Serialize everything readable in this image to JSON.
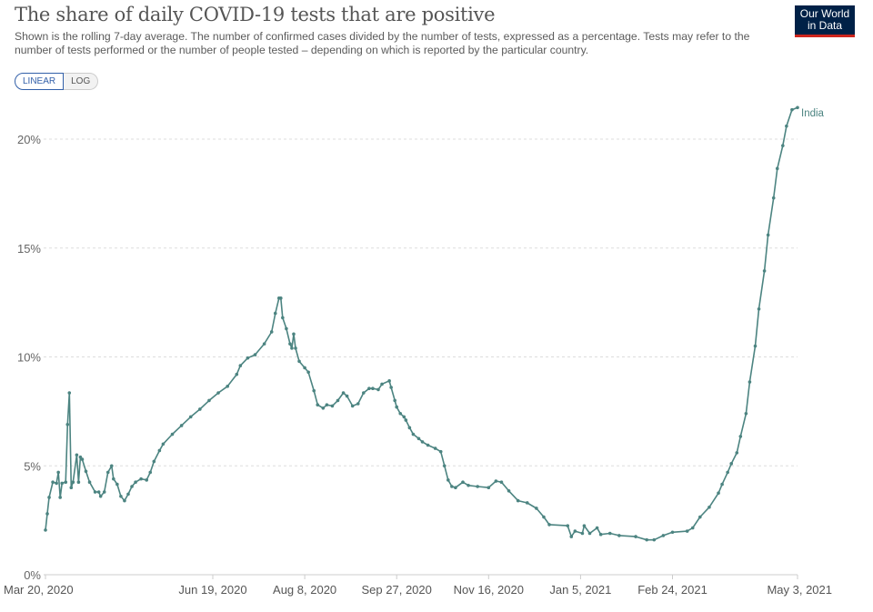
{
  "header": {
    "title": "The share of daily COVID-19 tests that are positive",
    "subtitle": "Shown is the rolling 7-day average. The number of confirmed cases divided by the number of tests, expressed as a percentage. Tests may refer to the number of tests performed or the number of people tested – depending on which is reported by the particular country.",
    "logo_text": "Our World in Data"
  },
  "controls": {
    "linear_label": "LINEAR",
    "log_label": "LOG",
    "selected": "LINEAR"
  },
  "colors": {
    "series": "#4c8481",
    "logo_bg": "#002147",
    "logo_accent": "#ce261e",
    "active_toggle": "#3360a9"
  },
  "chart_data": {
    "type": "line",
    "title": "The share of daily COVID-19 tests that are positive",
    "xlabel": "",
    "ylabel": "",
    "ylim": [
      0,
      22
    ],
    "xlim": [
      "2020-03-20",
      "2021-05-03"
    ],
    "grid": true,
    "y_scale": "linear",
    "y_ticks": [
      "0%",
      "5%",
      "10%",
      "15%",
      "20%"
    ],
    "x_ticks": [
      [
        "2020-03-20",
        "Mar 20, 2020"
      ],
      [
        "2020-06-19",
        "Jun 19, 2020"
      ],
      [
        "2020-08-08",
        "Aug 8, 2020"
      ],
      [
        "2020-09-27",
        "Sep 27, 2020"
      ],
      [
        "2020-11-16",
        "Nov 16, 2020"
      ],
      [
        "2021-01-05",
        "Jan 5, 2021"
      ],
      [
        "2021-02-24",
        "Feb 24, 2021"
      ],
      [
        "2021-05-03",
        "May 3, 2021"
      ]
    ],
    "series": [
      {
        "name": "India",
        "points": [
          [
            "2020-03-20",
            2.05
          ],
          [
            "2020-03-21",
            2.8
          ],
          [
            "2020-03-22",
            3.55
          ],
          [
            "2020-03-24",
            4.25
          ],
          [
            "2020-03-26",
            4.2
          ],
          [
            "2020-03-27",
            4.7
          ],
          [
            "2020-03-28",
            3.55
          ],
          [
            "2020-03-29",
            4.2
          ],
          [
            "2020-03-31",
            4.25
          ],
          [
            "2020-04-01",
            6.9
          ],
          [
            "2020-04-02",
            8.35
          ],
          [
            "2020-04-03",
            4.0
          ],
          [
            "2020-04-04",
            4.25
          ],
          [
            "2020-04-06",
            5.5
          ],
          [
            "2020-04-07",
            4.25
          ],
          [
            "2020-04-08",
            5.4
          ],
          [
            "2020-04-09",
            5.3
          ],
          [
            "2020-04-11",
            4.75
          ],
          [
            "2020-04-13",
            4.25
          ],
          [
            "2020-04-16",
            3.8
          ],
          [
            "2020-04-18",
            3.8
          ],
          [
            "2020-04-19",
            3.6
          ],
          [
            "2020-04-21",
            3.8
          ],
          [
            "2020-04-23",
            4.7
          ],
          [
            "2020-04-25",
            5.0
          ],
          [
            "2020-04-26",
            4.4
          ],
          [
            "2020-04-28",
            4.15
          ],
          [
            "2020-04-30",
            3.6
          ],
          [
            "2020-05-02",
            3.4
          ],
          [
            "2020-05-04",
            3.7
          ],
          [
            "2020-05-06",
            4.05
          ],
          [
            "2020-05-08",
            4.25
          ],
          [
            "2020-05-11",
            4.4
          ],
          [
            "2020-05-14",
            4.35
          ],
          [
            "2020-05-16",
            4.7
          ],
          [
            "2020-05-18",
            5.2
          ],
          [
            "2020-05-21",
            5.7
          ],
          [
            "2020-05-23",
            6.0
          ],
          [
            "2020-05-28",
            6.45
          ],
          [
            "2020-06-02",
            6.85
          ],
          [
            "2020-06-07",
            7.25
          ],
          [
            "2020-06-12",
            7.6
          ],
          [
            "2020-06-17",
            8.0
          ],
          [
            "2020-06-22",
            8.35
          ],
          [
            "2020-06-27",
            8.65
          ],
          [
            "2020-07-02",
            9.2
          ],
          [
            "2020-07-04",
            9.6
          ],
          [
            "2020-07-08",
            9.95
          ],
          [
            "2020-07-12",
            10.1
          ],
          [
            "2020-07-17",
            10.6
          ],
          [
            "2020-07-21",
            11.15
          ],
          [
            "2020-07-23",
            12.0
          ],
          [
            "2020-07-25",
            12.7
          ],
          [
            "2020-07-26",
            12.7
          ],
          [
            "2020-07-27",
            11.8
          ],
          [
            "2020-07-29",
            11.3
          ],
          [
            "2020-07-31",
            10.6
          ],
          [
            "2020-08-01",
            10.4
          ],
          [
            "2020-08-02",
            11.05
          ],
          [
            "2020-08-03",
            10.4
          ],
          [
            "2020-08-05",
            9.8
          ],
          [
            "2020-08-08",
            9.5
          ],
          [
            "2020-08-10",
            9.3
          ],
          [
            "2020-08-13",
            8.45
          ],
          [
            "2020-08-15",
            7.8
          ],
          [
            "2020-08-18",
            7.65
          ],
          [
            "2020-08-20",
            7.8
          ],
          [
            "2020-08-23",
            7.75
          ],
          [
            "2020-08-26",
            8.0
          ],
          [
            "2020-08-29",
            8.35
          ],
          [
            "2020-08-31",
            8.2
          ],
          [
            "2020-09-03",
            7.75
          ],
          [
            "2020-09-06",
            7.85
          ],
          [
            "2020-09-09",
            8.35
          ],
          [
            "2020-09-12",
            8.55
          ],
          [
            "2020-09-14",
            8.55
          ],
          [
            "2020-09-17",
            8.5
          ],
          [
            "2020-09-19",
            8.75
          ],
          [
            "2020-09-23",
            8.9
          ],
          [
            "2020-09-24",
            8.6
          ],
          [
            "2020-09-26",
            8.0
          ],
          [
            "2020-09-27",
            7.7
          ],
          [
            "2020-09-29",
            7.4
          ],
          [
            "2020-10-01",
            7.25
          ],
          [
            "2020-10-02",
            7.1
          ],
          [
            "2020-10-04",
            6.75
          ],
          [
            "2020-10-06",
            6.45
          ],
          [
            "2020-10-09",
            6.25
          ],
          [
            "2020-10-11",
            6.1
          ],
          [
            "2020-10-14",
            5.95
          ],
          [
            "2020-10-18",
            5.8
          ],
          [
            "2020-10-21",
            5.65
          ],
          [
            "2020-10-23",
            5.0
          ],
          [
            "2020-10-25",
            4.35
          ],
          [
            "2020-10-27",
            4.05
          ],
          [
            "2020-10-29",
            4.0
          ],
          [
            "2020-11-02",
            4.25
          ],
          [
            "2020-11-05",
            4.1
          ],
          [
            "2020-11-10",
            4.05
          ],
          [
            "2020-11-16",
            4.0
          ],
          [
            "2020-11-20",
            4.3
          ],
          [
            "2020-11-23",
            4.25
          ],
          [
            "2020-11-27",
            3.85
          ],
          [
            "2020-12-02",
            3.4
          ],
          [
            "2020-12-07",
            3.3
          ],
          [
            "2020-12-12",
            3.05
          ],
          [
            "2020-12-16",
            2.65
          ],
          [
            "2020-12-19",
            2.3
          ],
          [
            "2020-12-29",
            2.25
          ],
          [
            "2020-12-31",
            1.75
          ],
          [
            "2021-01-02",
            2.0
          ],
          [
            "2021-01-06",
            1.9
          ],
          [
            "2021-01-07",
            2.25
          ],
          [
            "2021-01-10",
            1.9
          ],
          [
            "2021-01-14",
            2.15
          ],
          [
            "2021-01-16",
            1.85
          ],
          [
            "2021-01-21",
            1.9
          ],
          [
            "2021-01-26",
            1.8
          ],
          [
            "2021-02-04",
            1.75
          ],
          [
            "2021-02-10",
            1.6
          ],
          [
            "2021-02-14",
            1.6
          ],
          [
            "2021-02-19",
            1.8
          ],
          [
            "2021-02-24",
            1.95
          ],
          [
            "2021-03-04",
            2.0
          ],
          [
            "2021-03-07",
            2.15
          ],
          [
            "2021-03-11",
            2.65
          ],
          [
            "2021-03-16",
            3.1
          ],
          [
            "2021-03-21",
            3.75
          ],
          [
            "2021-03-23",
            4.15
          ],
          [
            "2021-03-26",
            4.7
          ],
          [
            "2021-03-28",
            5.1
          ],
          [
            "2021-03-31",
            5.6
          ],
          [
            "2021-04-02",
            6.35
          ],
          [
            "2021-04-05",
            7.4
          ],
          [
            "2021-04-07",
            8.85
          ],
          [
            "2021-04-10",
            10.5
          ],
          [
            "2021-04-12",
            12.2
          ],
          [
            "2021-04-15",
            13.95
          ],
          [
            "2021-04-17",
            15.6
          ],
          [
            "2021-04-20",
            17.3
          ],
          [
            "2021-04-22",
            18.65
          ],
          [
            "2021-04-25",
            19.7
          ],
          [
            "2021-04-27",
            20.6
          ],
          [
            "2021-04-30",
            21.35
          ],
          [
            "2021-05-03",
            21.45
          ]
        ]
      }
    ]
  }
}
